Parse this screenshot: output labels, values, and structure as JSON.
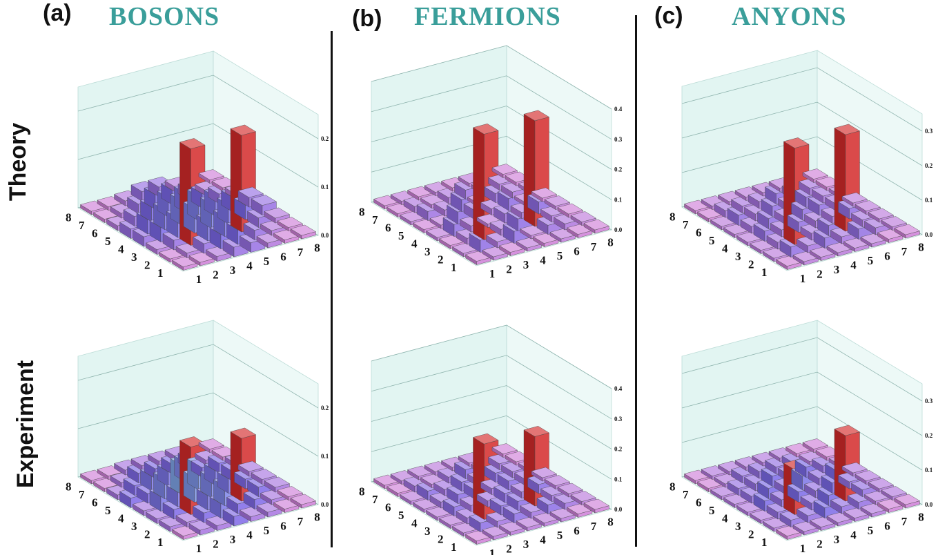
{
  "panels": [
    {
      "letter": "(a)",
      "title": "BOSONS"
    },
    {
      "letter": "(b)",
      "title": "FERMIONS"
    },
    {
      "letter": "(c)",
      "title": "ANYONS"
    }
  ],
  "rows": [
    "Theory",
    "Experiment"
  ],
  "colors": {
    "title": "#3a9e9a",
    "peak": "#d42a2a",
    "peak_exp_orange": "#ef7a30",
    "mid": "#7fa9e8",
    "low": "#7b68e8",
    "floor": "#cf7fd8",
    "wall": "#d8f2ee"
  },
  "chart_data": [
    {
      "type": "bar3d",
      "panel": "BOSONS",
      "row": "Theory",
      "x_labels": [
        "1",
        "2",
        "3",
        "4",
        "5",
        "6",
        "7",
        "8"
      ],
      "y_labels": [
        "1",
        "2",
        "3",
        "4",
        "5",
        "6",
        "7",
        "8"
      ],
      "z_ticks": [
        "0.0",
        "0.1",
        "0.2"
      ],
      "zlim": [
        0,
        0.25
      ],
      "values": [
        [
          0.0,
          0.0,
          0.01,
          0.02,
          0.02,
          0.01,
          0.0,
          0.0
        ],
        [
          0.0,
          0.01,
          0.02,
          0.03,
          0.03,
          0.02,
          0.01,
          0.0
        ],
        [
          0.01,
          0.02,
          0.2,
          0.04,
          0.04,
          0.2,
          0.02,
          0.01
        ],
        [
          0.02,
          0.03,
          0.04,
          0.05,
          0.05,
          0.04,
          0.03,
          0.02
        ],
        [
          0.02,
          0.03,
          0.04,
          0.05,
          0.05,
          0.04,
          0.03,
          0.02
        ],
        [
          0.01,
          0.02,
          0.03,
          0.04,
          0.04,
          0.03,
          0.02,
          0.01
        ],
        [
          0.0,
          0.01,
          0.02,
          0.03,
          0.03,
          0.02,
          0.01,
          0.0
        ],
        [
          0.0,
          0.0,
          0.01,
          0.02,
          0.02,
          0.01,
          0.0,
          0.0
        ]
      ]
    },
    {
      "type": "bar3d",
      "panel": "FERMIONS",
      "row": "Theory",
      "x_labels": [
        "1",
        "2",
        "3",
        "4",
        "5",
        "6",
        "7",
        "8"
      ],
      "y_labels": [
        "1",
        "2",
        "3",
        "4",
        "5",
        "6",
        "7",
        "8"
      ],
      "z_ticks": [
        "0.0",
        "0.1",
        "0.2",
        "0.3",
        "0.4"
      ],
      "zlim": [
        0,
        0.4
      ],
      "values": [
        [
          0.0,
          0.01,
          0.0,
          0.01,
          0.0,
          0.01,
          0.0,
          0.0
        ],
        [
          0.01,
          0.04,
          0.02,
          0.04,
          0.01,
          0.03,
          0.02,
          0.01
        ],
        [
          0.0,
          0.02,
          0.35,
          0.02,
          0.04,
          0.35,
          0.02,
          0.0
        ],
        [
          0.01,
          0.04,
          0.02,
          0.01,
          0.03,
          0.02,
          0.04,
          0.01
        ],
        [
          0.0,
          0.01,
          0.04,
          0.03,
          0.02,
          0.04,
          0.01,
          0.0
        ],
        [
          0.01,
          0.03,
          0.02,
          0.04,
          0.01,
          0.03,
          0.02,
          0.01
        ],
        [
          0.0,
          0.02,
          0.01,
          0.02,
          0.03,
          0.01,
          0.02,
          0.0
        ],
        [
          0.0,
          0.01,
          0.0,
          0.01,
          0.0,
          0.01,
          0.0,
          0.0
        ]
      ]
    },
    {
      "type": "bar3d",
      "panel": "ANYONS",
      "row": "Theory",
      "x_labels": [
        "1",
        "2",
        "3",
        "4",
        "5",
        "6",
        "7",
        "8"
      ],
      "y_labels": [
        "1",
        "2",
        "3",
        "4",
        "5",
        "6",
        "7",
        "8"
      ],
      "z_ticks": [
        "0.0",
        "0.1",
        "0.2",
        "0.3"
      ],
      "zlim": [
        0,
        0.35
      ],
      "values": [
        [
          0.0,
          0.01,
          0.01,
          0.01,
          0.01,
          0.01,
          0.0,
          0.0
        ],
        [
          0.01,
          0.03,
          0.02,
          0.03,
          0.02,
          0.03,
          0.02,
          0.01
        ],
        [
          0.01,
          0.02,
          0.28,
          0.02,
          0.03,
          0.28,
          0.02,
          0.01
        ],
        [
          0.01,
          0.03,
          0.02,
          0.03,
          0.02,
          0.02,
          0.03,
          0.01
        ],
        [
          0.01,
          0.02,
          0.03,
          0.02,
          0.03,
          0.03,
          0.02,
          0.01
        ],
        [
          0.01,
          0.03,
          0.02,
          0.03,
          0.02,
          0.03,
          0.02,
          0.01
        ],
        [
          0.0,
          0.02,
          0.02,
          0.02,
          0.03,
          0.02,
          0.02,
          0.0
        ],
        [
          0.0,
          0.01,
          0.01,
          0.01,
          0.01,
          0.01,
          0.0,
          0.0
        ]
      ]
    },
    {
      "type": "bar3d",
      "panel": "BOSONS",
      "row": "Experiment",
      "x_labels": [
        "1",
        "2",
        "3",
        "4",
        "5",
        "6",
        "7",
        "8"
      ],
      "y_labels": [
        "1",
        "2",
        "3",
        "4",
        "5",
        "6",
        "7",
        "8"
      ],
      "z_ticks": [
        "0.0",
        "0.1",
        "0.2"
      ],
      "zlim": [
        0,
        0.25
      ],
      "values": [
        [
          0.0,
          0.01,
          0.01,
          0.02,
          0.01,
          0.01,
          0.0,
          0.0
        ],
        [
          0.01,
          0.01,
          0.02,
          0.03,
          0.02,
          0.02,
          0.01,
          0.0
        ],
        [
          0.01,
          0.02,
          0.14,
          0.03,
          0.04,
          0.13,
          0.02,
          0.01
        ],
        [
          0.01,
          0.03,
          0.03,
          0.05,
          0.04,
          0.03,
          0.02,
          0.01
        ],
        [
          0.02,
          0.02,
          0.04,
          0.06,
          0.05,
          0.03,
          0.02,
          0.01
        ],
        [
          0.01,
          0.02,
          0.03,
          0.03,
          0.04,
          0.02,
          0.02,
          0.01
        ],
        [
          0.0,
          0.01,
          0.02,
          0.02,
          0.02,
          0.02,
          0.01,
          0.0
        ],
        [
          0.0,
          0.0,
          0.01,
          0.01,
          0.01,
          0.01,
          0.0,
          0.0
        ]
      ]
    },
    {
      "type": "bar3d",
      "panel": "FERMIONS",
      "row": "Experiment",
      "x_labels": [
        "1",
        "2",
        "3",
        "4",
        "5",
        "6",
        "7",
        "8"
      ],
      "y_labels": [
        "1",
        "2",
        "3",
        "4",
        "5",
        "6",
        "7",
        "8"
      ],
      "z_ticks": [
        "0.0",
        "0.1",
        "0.2",
        "0.3",
        "0.4"
      ],
      "zlim": [
        0,
        0.4
      ],
      "values": [
        [
          0.0,
          0.01,
          0.01,
          0.01,
          0.01,
          0.01,
          0.0,
          0.0
        ],
        [
          0.01,
          0.03,
          0.02,
          0.03,
          0.02,
          0.03,
          0.02,
          0.01
        ],
        [
          0.01,
          0.02,
          0.25,
          0.03,
          0.03,
          0.23,
          0.02,
          0.01
        ],
        [
          0.01,
          0.03,
          0.02,
          0.02,
          0.03,
          0.02,
          0.03,
          0.01
        ],
        [
          0.01,
          0.02,
          0.03,
          0.03,
          0.02,
          0.03,
          0.02,
          0.01
        ],
        [
          0.01,
          0.03,
          0.02,
          0.03,
          0.02,
          0.03,
          0.02,
          0.01
        ],
        [
          0.0,
          0.02,
          0.01,
          0.02,
          0.03,
          0.01,
          0.02,
          0.0
        ],
        [
          0.0,
          0.01,
          0.01,
          0.01,
          0.01,
          0.01,
          0.0,
          0.0
        ]
      ]
    },
    {
      "type": "bar3d",
      "panel": "ANYONS",
      "row": "Experiment",
      "x_labels": [
        "1",
        "2",
        "3",
        "4",
        "5",
        "6",
        "7",
        "8"
      ],
      "y_labels": [
        "1",
        "2",
        "3",
        "4",
        "5",
        "6",
        "7",
        "8"
      ],
      "z_ticks": [
        "0.0",
        "0.1",
        "0.2",
        "0.3"
      ],
      "zlim": [
        0,
        0.35
      ],
      "values": [
        [
          0.0,
          0.01,
          0.01,
          0.01,
          0.01,
          0.01,
          0.0,
          0.0
        ],
        [
          0.01,
          0.02,
          0.02,
          0.03,
          0.02,
          0.02,
          0.01,
          0.01
        ],
        [
          0.01,
          0.02,
          0.13,
          0.02,
          0.03,
          0.19,
          0.02,
          0.01
        ],
        [
          0.01,
          0.03,
          0.02,
          0.03,
          0.02,
          0.03,
          0.02,
          0.01
        ],
        [
          0.01,
          0.02,
          0.03,
          0.02,
          0.04,
          0.02,
          0.03,
          0.01
        ],
        [
          0.01,
          0.02,
          0.02,
          0.03,
          0.02,
          0.03,
          0.02,
          0.01
        ],
        [
          0.0,
          0.01,
          0.02,
          0.02,
          0.02,
          0.02,
          0.01,
          0.0
        ],
        [
          0.0,
          0.01,
          0.01,
          0.01,
          0.01,
          0.01,
          0.0,
          0.0
        ]
      ]
    }
  ]
}
